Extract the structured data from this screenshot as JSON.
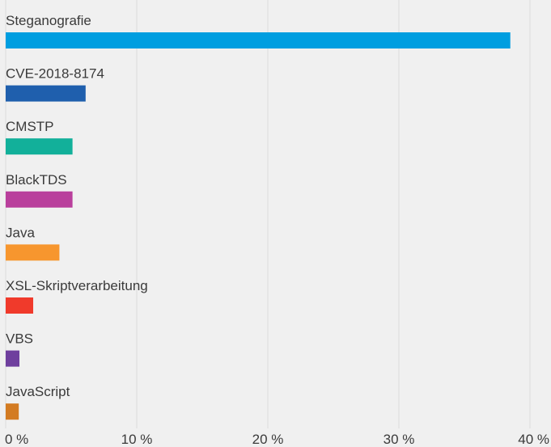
{
  "chart_data": {
    "type": "bar",
    "orientation": "horizontal",
    "categories": [
      "Steganografie",
      "CVE-2018-8174",
      "CMSTP",
      "BlackTDS",
      "Java",
      "XSL-Skriptverarbeitung",
      "VBS",
      "JavaScript"
    ],
    "values": [
      38.5,
      6.1,
      5.1,
      5.1,
      4.1,
      2.1,
      1.05,
      1.0
    ],
    "colors": [
      "#009ee0",
      "#1f5fad",
      "#12b09a",
      "#b93f9c",
      "#f7962e",
      "#f03a2b",
      "#6f3f9e",
      "#d37b22"
    ],
    "xlim": [
      0,
      40
    ],
    "xticks": [
      {
        "value": 0,
        "label": "0 %"
      },
      {
        "value": 10,
        "label": "10 %"
      },
      {
        "value": 20,
        "label": "20 %"
      },
      {
        "value": 30,
        "label": "30 %"
      },
      {
        "value": 40,
        "label": "40 %"
      }
    ],
    "grid": true
  }
}
